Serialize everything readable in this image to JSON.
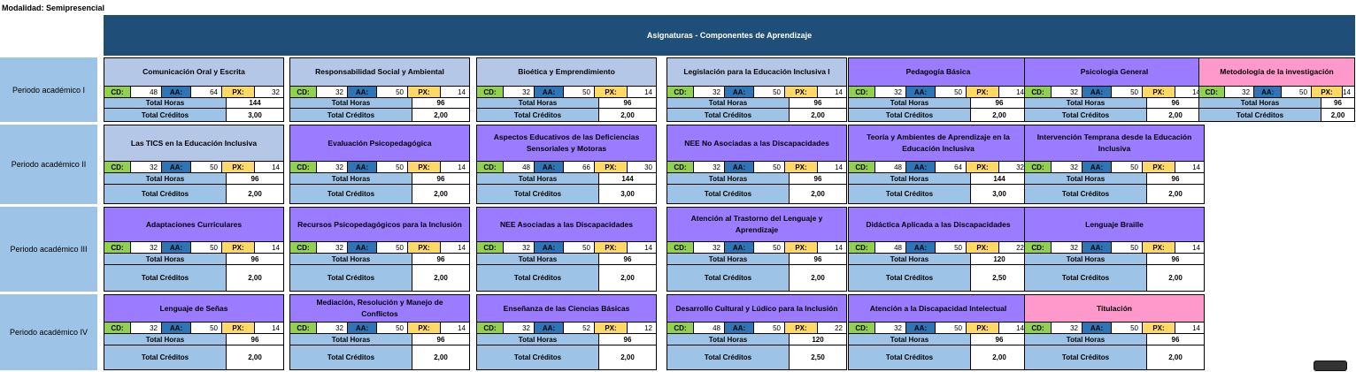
{
  "modalidad": "Modalidad: Semipresencial",
  "header": "Asignaturas - Componentes de Aprendizaje",
  "labels": {
    "cd": "CD:",
    "aa": "AA:",
    "px": "PX:",
    "total_horas": "Total Horas",
    "total_creditos": "Total Créditos"
  },
  "periods": [
    {
      "name": "Periodo académico I",
      "courses": [
        {
          "title": "Comunicación Oral y Escrita",
          "color": "blue",
          "cd": "48",
          "aa": "64",
          "px": "32",
          "horas": "144",
          "creditos": "3,00"
        },
        {
          "title": "Responsabilidad Social y Ambiental",
          "color": "blue",
          "cd": "32",
          "aa": "50",
          "px": "14",
          "horas": "96",
          "creditos": "2,00"
        },
        {
          "title": "Bioética y Emprendimiento",
          "color": "blue",
          "cd": "32",
          "aa": "50",
          "px": "14",
          "horas": "96",
          "creditos": "2,00"
        },
        {
          "title": "Legislación para la Educación Inclusiva I",
          "color": "blue",
          "cd": "32",
          "aa": "50",
          "px": "14",
          "horas": "96",
          "creditos": "2,00"
        },
        {
          "title": "Pedagogía Básica",
          "color": "purple",
          "cd": "32",
          "aa": "50",
          "px": "14",
          "horas": "96",
          "creditos": "2,00"
        },
        {
          "title": "Psicología General",
          "color": "purple",
          "cd": "32",
          "aa": "50",
          "px": "14",
          "horas": "96",
          "creditos": "2,00"
        },
        {
          "title": "Metodología de la investigación",
          "color": "pink",
          "cd": "32",
          "aa": "50",
          "px": "14",
          "horas": "96",
          "creditos": "2,00"
        }
      ]
    },
    {
      "name": "Periodo académico II",
      "courses": [
        {
          "title": "Las TICS en la Educación Inclusiva",
          "color": "blue",
          "cd": "32",
          "aa": "50",
          "px": "14",
          "horas": "96",
          "creditos": "2,00"
        },
        {
          "title": "Evaluación Psicopedagógica",
          "color": "purple",
          "cd": "32",
          "aa": "50",
          "px": "14",
          "horas": "96",
          "creditos": "2,00"
        },
        {
          "title": "Aspectos Educativos de las Deficiencias Sensoriales y Motoras",
          "color": "purple",
          "cd": "48",
          "aa": "66",
          "px": "30",
          "horas": "144",
          "creditos": "3,00"
        },
        {
          "title": "NEE No Asociadas a las Discapacidades",
          "color": "purple",
          "cd": "32",
          "aa": "50",
          "px": "14",
          "horas": "96",
          "creditos": "2,00"
        },
        {
          "title": "Teoría y Ambientes de Aprendizaje en la Educación Inclusiva",
          "color": "purple",
          "cd": "48",
          "aa": "64",
          "px": "32",
          "horas": "144",
          "creditos": "3,00"
        },
        {
          "title": "Intervención Temprana desde la Educación Inclusiva",
          "color": "purple",
          "cd": "32",
          "aa": "50",
          "px": "14",
          "horas": "96",
          "creditos": "2,00"
        }
      ]
    },
    {
      "name": "Periodo académico III",
      "courses": [
        {
          "title": "Adaptaciones Curriculares",
          "color": "purple",
          "cd": "32",
          "aa": "50",
          "px": "14",
          "horas": "96",
          "creditos": "2,00"
        },
        {
          "title": "Recursos Psicopedagógicos para la Inclusión",
          "color": "purple",
          "cd": "32",
          "aa": "50",
          "px": "14",
          "horas": "96",
          "creditos": "2,00"
        },
        {
          "title": "NEE Asociadas a las Discapacidades",
          "color": "purple",
          "cd": "32",
          "aa": "50",
          "px": "14",
          "horas": "96",
          "creditos": "2,00"
        },
        {
          "title": "Atención al Trastorno del Lenguaje y Aprendizaje",
          "color": "purple",
          "cd": "32",
          "aa": "50",
          "px": "14",
          "horas": "96",
          "creditos": "2,00"
        },
        {
          "title": "Didáctica Aplicada a las Discapacidades",
          "color": "purple",
          "cd": "48",
          "aa": "50",
          "px": "22",
          "horas": "120",
          "creditos": "2,50"
        },
        {
          "title": "Lenguaje Braille",
          "color": "purple",
          "cd": "32",
          "aa": "50",
          "px": "14",
          "horas": "96",
          "creditos": "2,00"
        }
      ]
    },
    {
      "name": "Periodo académico IV",
      "courses": [
        {
          "title": "Lenguaje de Señas",
          "color": "purple",
          "cd": "32",
          "aa": "50",
          "px": "14",
          "horas": "96",
          "creditos": "2,00"
        },
        {
          "title": "Mediación, Resolución y Manejo de Conflictos",
          "color": "purple",
          "cd": "32",
          "aa": "50",
          "px": "14",
          "horas": "96",
          "creditos": "2,00"
        },
        {
          "title": "Enseñanza de las Ciencias Básicas",
          "color": "purple",
          "cd": "32",
          "aa": "52",
          "px": "12",
          "horas": "96",
          "creditos": "2,00"
        },
        {
          "title": "Desarrollo Cultural y Lúdico para la Inclusión",
          "color": "purple",
          "cd": "48",
          "aa": "50",
          "px": "22",
          "horas": "120",
          "creditos": "2,50"
        },
        {
          "title": "Atención a la Discapacidad Intelectual",
          "color": "purple",
          "cd": "32",
          "aa": "50",
          "px": "14",
          "horas": "96",
          "creditos": "2,00"
        },
        {
          "title": "Titulación",
          "color": "pink",
          "cd": "32",
          "aa": "50",
          "px": "14",
          "horas": "96",
          "creditos": "2,00"
        }
      ]
    }
  ]
}
